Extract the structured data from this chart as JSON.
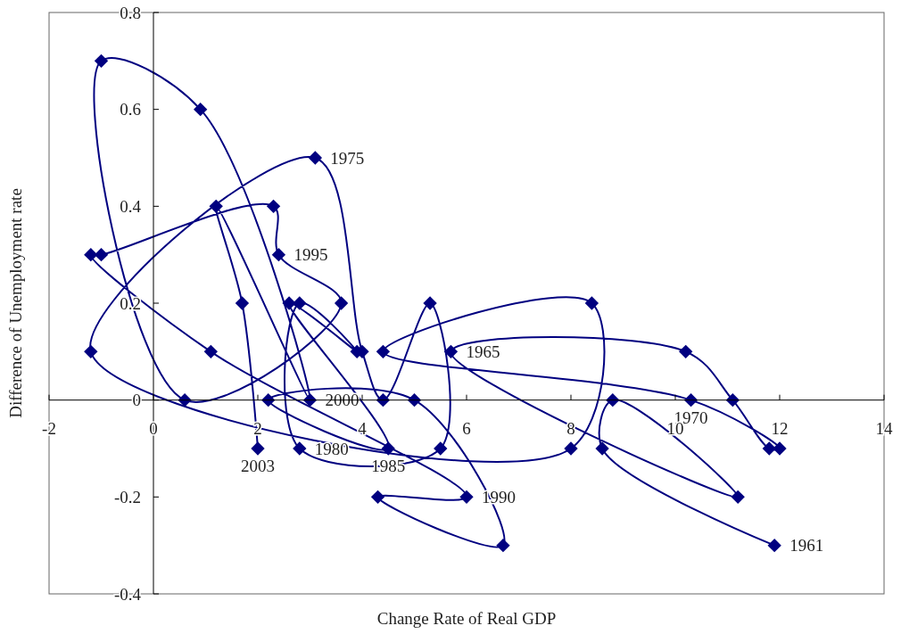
{
  "chart_data": {
    "type": "line",
    "xlabel": "Change Rate of Real GDP",
    "ylabel": "Difference of Unemployment rate",
    "xlim": [
      -2,
      14
    ],
    "xticks": [
      -2,
      0,
      2,
      4,
      6,
      8,
      10,
      12,
      14
    ],
    "ylim": [
      -0.4,
      0.8
    ],
    "yticks": [
      -0.4,
      -0.2,
      0,
      0.2,
      0.4,
      0.6,
      0.8
    ],
    "grid": false,
    "marker": "diamond",
    "line_style": "solid",
    "series": [
      {
        "color": "#000080",
        "x": [
          11.9,
          8.6,
          8.8,
          11.2,
          5.7,
          10.2,
          11.1,
          11.8,
          12.0,
          10.3,
          4.4,
          8.4,
          8.0,
          -1.2,
          3.1,
          4.0,
          4.4,
          5.3,
          5.5,
          2.8,
          2.8,
          3.9,
          2.6,
          4.5,
          2.2,
          5.0,
          6.7,
          4.3,
          6.0,
          1.1,
          -1.2,
          -1.0,
          2.3,
          2.4,
          3.6,
          0.6,
          -1.0,
          0.9,
          3.0,
          1.2,
          1.7,
          2.0
        ],
        "values": [
          -0.3,
          -0.1,
          0,
          -0.2,
          0.1,
          0.1,
          0,
          -0.1,
          -0.1,
          0,
          0.1,
          0.2,
          -0.1,
          0.1,
          0.5,
          0.1,
          0,
          0.2,
          -0.1,
          -0.1,
          0.2,
          0.1,
          0.2,
          -0.1,
          0,
          0,
          -0.3,
          -0.2,
          -0.2,
          0.1,
          0.3,
          0.3,
          0.4,
          0.3,
          0.2,
          0,
          0.7,
          0.6,
          0,
          0.4,
          0.2,
          -0.1
        ]
      }
    ],
    "annotations": [
      {
        "text": "1961",
        "x": 11.9,
        "y": -0.3
      },
      {
        "text": "1965",
        "x": 5.7,
        "y": 0.1
      },
      {
        "text": "1970",
        "x": 10.3,
        "y": 0
      },
      {
        "text": "1975",
        "x": 3.1,
        "y": 0.5
      },
      {
        "text": "1980",
        "x": 2.8,
        "y": -0.1
      },
      {
        "text": "1985",
        "x": 4.5,
        "y": -0.1
      },
      {
        "text": "1990",
        "x": 6.0,
        "y": -0.2
      },
      {
        "text": "1995",
        "x": 2.4,
        "y": 0.3
      },
      {
        "text": "2000",
        "x": 3.0,
        "y": 0
      },
      {
        "text": "2003",
        "x": 2.0,
        "y": -0.1
      }
    ]
  }
}
